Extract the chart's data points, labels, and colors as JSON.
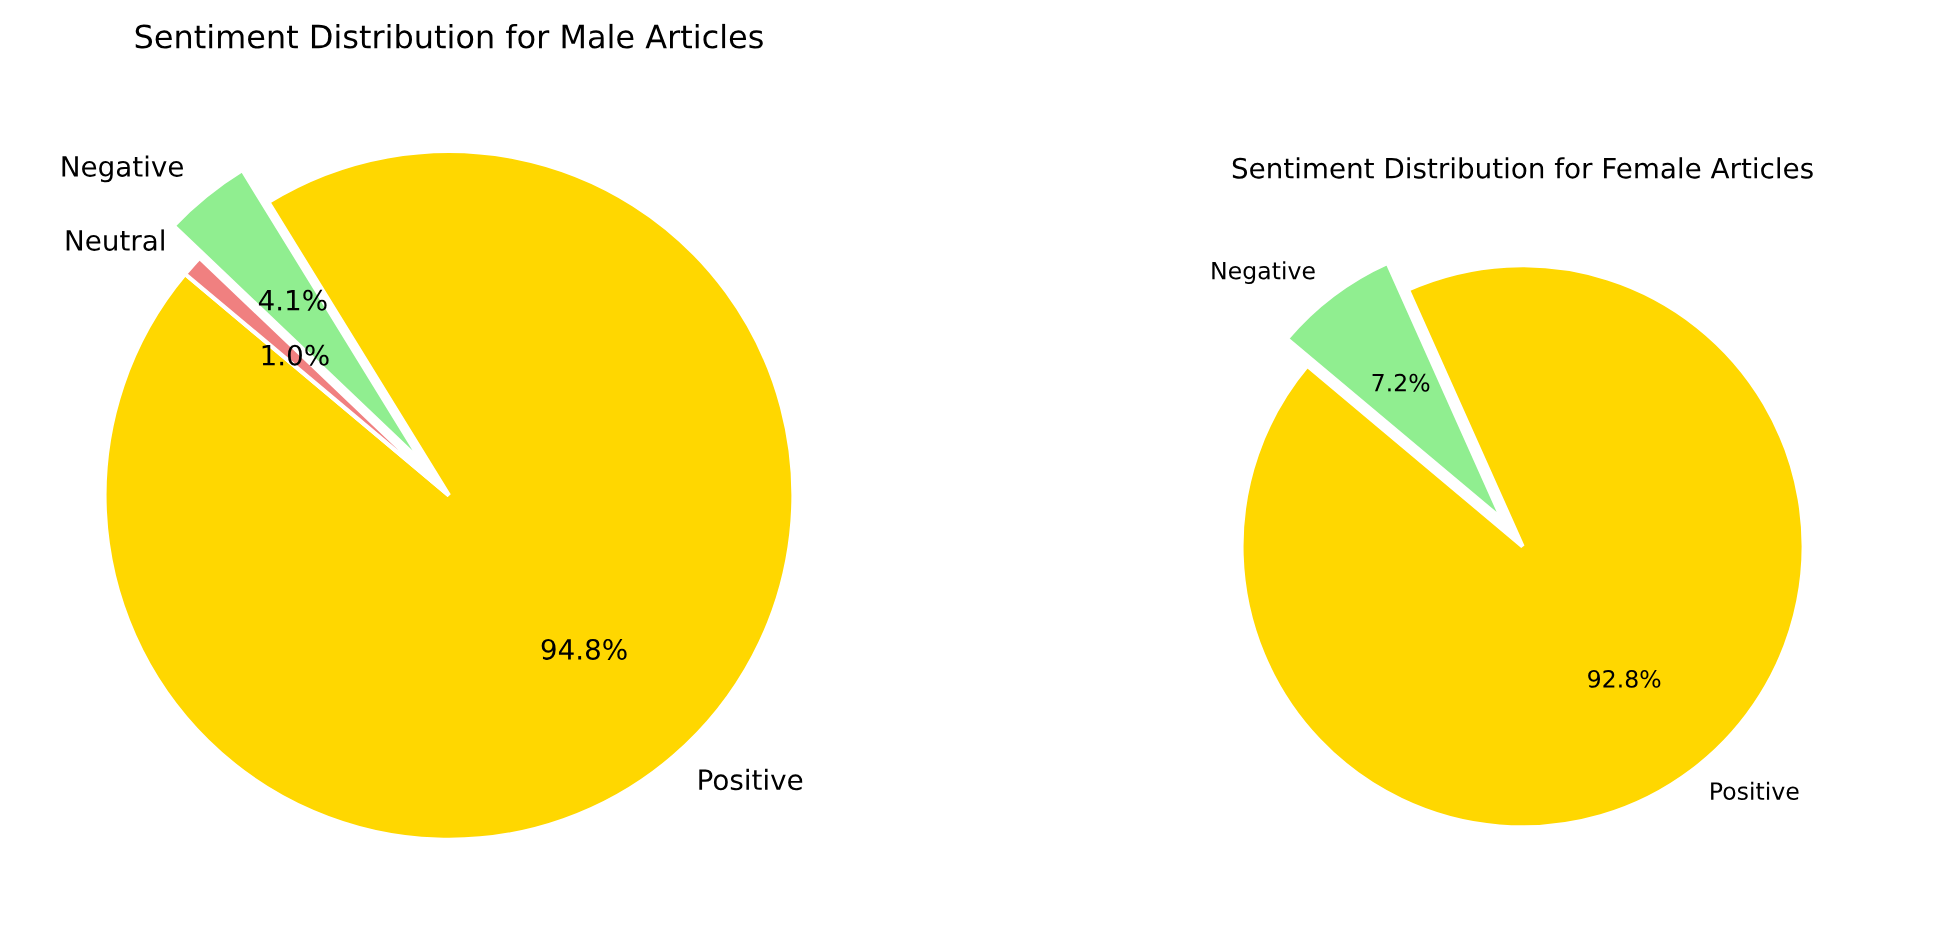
{
  "chart_data": [
    {
      "type": "pie",
      "title": "Sentiment Distribution for Male Articles",
      "categories": [
        "Positive",
        "Negative",
        "Neutral"
      ],
      "values": [
        94.8,
        4.1,
        1.0
      ],
      "colors": [
        "#ffd700",
        "#90ee90",
        "#f08080"
      ],
      "value_labels": [
        "94.8%",
        "4.1%",
        "1.0%"
      ]
    },
    {
      "type": "pie",
      "title": "Sentiment Distribution for Female Articles",
      "categories": [
        "Positive",
        "Negative"
      ],
      "values": [
        92.8,
        7.2
      ],
      "colors": [
        "#ffd700",
        "#90ee90"
      ],
      "value_labels": [
        "92.8%",
        "7.2%"
      ]
    }
  ]
}
